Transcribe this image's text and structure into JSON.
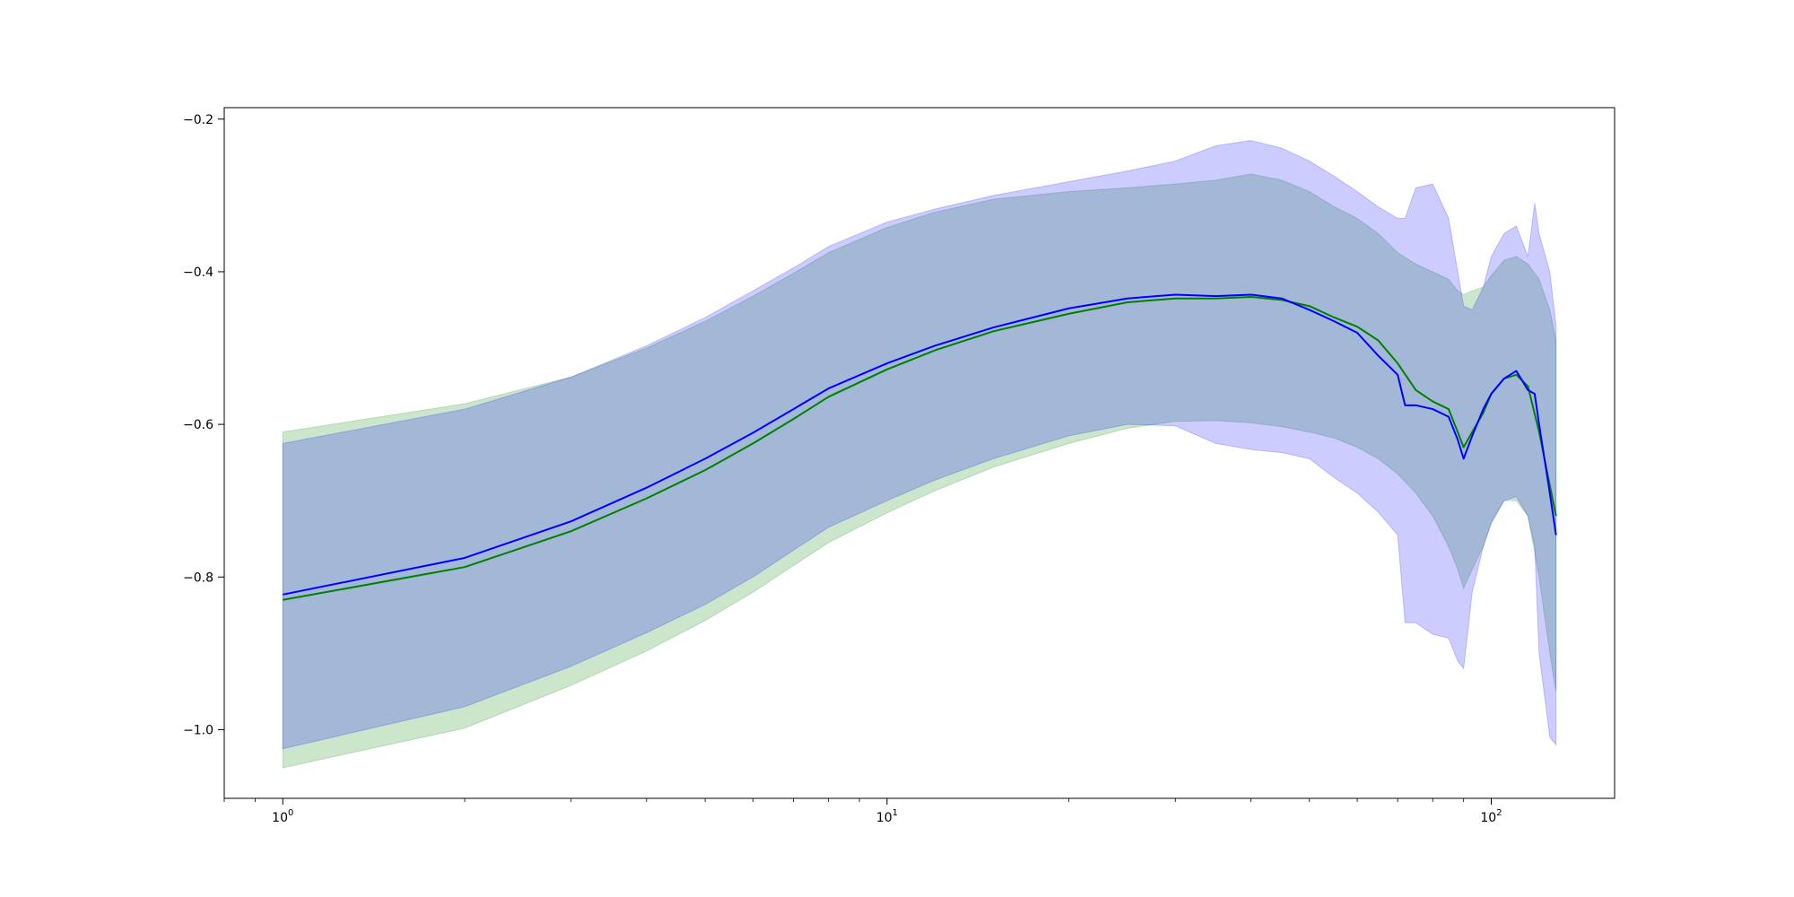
{
  "chart_data": {
    "type": "line",
    "title": "",
    "xlabel": "",
    "ylabel": "",
    "xscale": "log",
    "xlim": [
      0.8,
      160
    ],
    "ylim": [
      -1.09,
      -0.185
    ],
    "grid": false,
    "x_ticks": [
      {
        "value": 1,
        "base": "10",
        "exp": "0"
      },
      {
        "value": 10,
        "base": "10",
        "exp": "1"
      },
      {
        "value": 100,
        "base": "10",
        "exp": "2"
      }
    ],
    "y_ticks": [
      {
        "value": -0.2,
        "label": "−0.2"
      },
      {
        "value": -0.4,
        "label": "−0.4"
      },
      {
        "value": -0.6,
        "label": "−0.6"
      },
      {
        "value": -0.8,
        "label": "−0.8"
      },
      {
        "value": -1.0,
        "label": "−1.0"
      }
    ],
    "series": [
      {
        "color": "#008000",
        "band_color": "#008000",
        "band_opacity": 0.2,
        "points": [
          [
            1,
            -0.83,
            -0.61,
            -1.05
          ],
          [
            2,
            -0.787,
            -0.573,
            -0.998
          ],
          [
            3,
            -0.74,
            -0.538,
            -0.942
          ],
          [
            4,
            -0.697,
            -0.5,
            -0.897
          ],
          [
            5,
            -0.66,
            -0.465,
            -0.857
          ],
          [
            6,
            -0.625,
            -0.432,
            -0.82
          ],
          [
            7,
            -0.593,
            -0.402,
            -0.785
          ],
          [
            8,
            -0.564,
            -0.375,
            -0.755
          ],
          [
            10,
            -0.528,
            -0.342,
            -0.716
          ],
          [
            12,
            -0.503,
            -0.322,
            -0.687
          ],
          [
            15,
            -0.478,
            -0.305,
            -0.656
          ],
          [
            20,
            -0.455,
            -0.295,
            -0.625
          ],
          [
            25,
            -0.44,
            -0.29,
            -0.605
          ],
          [
            30,
            -0.435,
            -0.285,
            -0.596
          ],
          [
            35,
            -0.435,
            -0.28,
            -0.595
          ],
          [
            40,
            -0.433,
            -0.272,
            -0.598
          ],
          [
            45,
            -0.437,
            -0.28,
            -0.603
          ],
          [
            50,
            -0.445,
            -0.295,
            -0.61
          ],
          [
            55,
            -0.46,
            -0.315,
            -0.618
          ],
          [
            60,
            -0.472,
            -0.33,
            -0.63
          ],
          [
            65,
            -0.49,
            -0.35,
            -0.645
          ],
          [
            70,
            -0.52,
            -0.375,
            -0.665
          ],
          [
            75,
            -0.555,
            -0.39,
            -0.69
          ],
          [
            80,
            -0.57,
            -0.4,
            -0.72
          ],
          [
            85,
            -0.58,
            -0.41,
            -0.76
          ],
          [
            88,
            -0.61,
            -0.425,
            -0.79
          ],
          [
            90,
            -0.63,
            -0.43,
            -0.815
          ],
          [
            93,
            -0.61,
            -0.425,
            -0.79
          ],
          [
            97,
            -0.585,
            -0.42,
            -0.76
          ],
          [
            100,
            -0.56,
            -0.405,
            -0.728
          ],
          [
            105,
            -0.54,
            -0.385,
            -0.7
          ],
          [
            110,
            -0.535,
            -0.38,
            -0.7
          ],
          [
            115,
            -0.55,
            -0.39,
            -0.72
          ],
          [
            120,
            -0.61,
            -0.41,
            -0.8
          ],
          [
            125,
            -0.68,
            -0.45,
            -0.9
          ],
          [
            128,
            -0.72,
            -0.49,
            -0.95
          ]
        ]
      },
      {
        "color": "#0000ff",
        "band_color": "#0000ff",
        "band_opacity": 0.2,
        "points": [
          [
            1,
            -0.823,
            -0.625,
            -1.025
          ],
          [
            2,
            -0.775,
            -0.58,
            -0.97
          ],
          [
            3,
            -0.727,
            -0.538,
            -0.917
          ],
          [
            4,
            -0.683,
            -0.497,
            -0.873
          ],
          [
            5,
            -0.645,
            -0.46,
            -0.836
          ],
          [
            6,
            -0.611,
            -0.425,
            -0.8
          ],
          [
            7,
            -0.58,
            -0.395,
            -0.765
          ],
          [
            8,
            -0.553,
            -0.367,
            -0.735
          ],
          [
            10,
            -0.52,
            -0.335,
            -0.7
          ],
          [
            12,
            -0.497,
            -0.318,
            -0.673
          ],
          [
            15,
            -0.473,
            -0.3,
            -0.645
          ],
          [
            20,
            -0.448,
            -0.282,
            -0.615
          ],
          [
            25,
            -0.435,
            -0.268,
            -0.6
          ],
          [
            30,
            -0.43,
            -0.255,
            -0.602
          ],
          [
            35,
            -0.432,
            -0.235,
            -0.625
          ],
          [
            40,
            -0.43,
            -0.228,
            -0.633
          ],
          [
            45,
            -0.435,
            -0.238,
            -0.637
          ],
          [
            50,
            -0.45,
            -0.255,
            -0.645
          ],
          [
            55,
            -0.465,
            -0.275,
            -0.67
          ],
          [
            60,
            -0.48,
            -0.295,
            -0.69
          ],
          [
            65,
            -0.51,
            -0.315,
            -0.715
          ],
          [
            70,
            -0.535,
            -0.33,
            -0.745
          ],
          [
            72,
            -0.575,
            -0.33,
            -0.86
          ],
          [
            75,
            -0.575,
            -0.29,
            -0.86
          ],
          [
            80,
            -0.58,
            -0.285,
            -0.875
          ],
          [
            85,
            -0.59,
            -0.33,
            -0.88
          ],
          [
            88,
            -0.62,
            -0.4,
            -0.91
          ],
          [
            90,
            -0.645,
            -0.445,
            -0.92
          ],
          [
            93,
            -0.615,
            -0.45,
            -0.82
          ],
          [
            97,
            -0.58,
            -0.42,
            -0.76
          ],
          [
            100,
            -0.56,
            -0.38,
            -0.73
          ],
          [
            105,
            -0.54,
            -0.35,
            -0.7
          ],
          [
            110,
            -0.53,
            -0.34,
            -0.695
          ],
          [
            115,
            -0.555,
            -0.38,
            -0.72
          ],
          [
            118,
            -0.56,
            -0.31,
            -0.76
          ],
          [
            120,
            -0.6,
            -0.35,
            -0.9
          ],
          [
            125,
            -0.69,
            -0.4,
            -1.01
          ],
          [
            128,
            -0.745,
            -0.47,
            -1.02
          ]
        ]
      }
    ]
  }
}
